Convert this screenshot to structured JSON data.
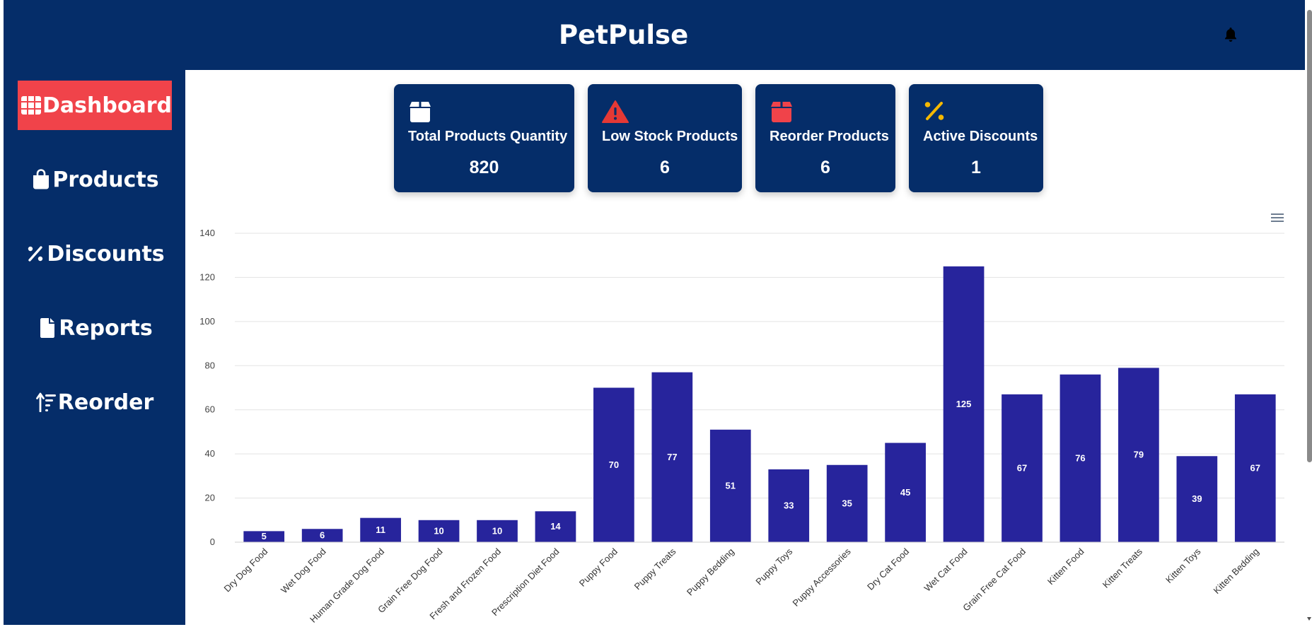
{
  "app": {
    "title": "PetPulse",
    "brand_color": "#052d69",
    "active_color": "#f0434a"
  },
  "header": {
    "notification_icon": "bell-icon"
  },
  "sidebar": {
    "items": [
      {
        "label": "Dashboard",
        "icon": "grid-icon",
        "active": true
      },
      {
        "label": "Products",
        "icon": "shopping-bag-icon",
        "active": false
      },
      {
        "label": "Discounts",
        "icon": "percent-icon",
        "active": false
      },
      {
        "label": "Reports",
        "icon": "file-icon",
        "active": false
      },
      {
        "label": "Reorder",
        "icon": "sort-amount-up-icon",
        "active": false
      }
    ]
  },
  "cards": [
    {
      "label": "Total Products Quantity",
      "value": "820",
      "icon": "box-icon",
      "icon_color": "#ffffff"
    },
    {
      "label": "Low Stock Products",
      "value": "6",
      "icon": "warning-triangle-icon",
      "icon_color": "#e53935"
    },
    {
      "label": "Reorder Products",
      "value": "6",
      "icon": "box-icon",
      "icon_color": "#f0434a"
    },
    {
      "label": "Active Discounts",
      "value": "1",
      "icon": "percent-icon",
      "icon_color": "#f5b800"
    }
  ],
  "chart_data": {
    "type": "bar",
    "categories": [
      "Dry Dog Food",
      "Wet Dog Food",
      "Human Grade Dog Food",
      "Grain Free Dog Food",
      "Fresh and Frozen Food",
      "Prescription Diet Food",
      "Puppy Food",
      "Puppy Treats",
      "Puppy Bedding",
      "Puppy Toys",
      "Puppy Accessories",
      "Dry Cat Food",
      "Wet Cat Food",
      "Grain Free Cat Food",
      "Kitten Food",
      "Kitten Treats",
      "Kitten Toys",
      "Kitten Bedding"
    ],
    "values": [
      5,
      6,
      11,
      10,
      10,
      14,
      70,
      77,
      51,
      33,
      35,
      45,
      125,
      67,
      76,
      79,
      39,
      67
    ],
    "yticks": [
      0,
      20,
      40,
      60,
      80,
      100,
      120,
      140
    ],
    "ylim": [
      0,
      140
    ],
    "bar_color": "#27249c",
    "grid": true,
    "data_labels": true,
    "menu_icon": "hamburger-menu-icon"
  }
}
